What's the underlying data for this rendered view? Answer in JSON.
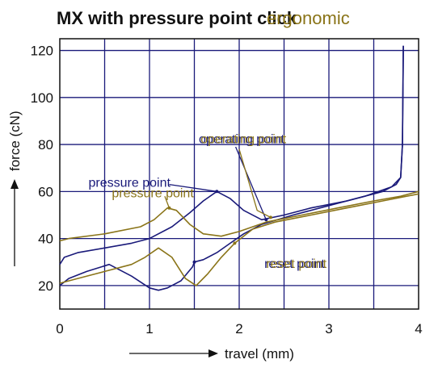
{
  "chart_data": {
    "type": "line",
    "title": "MX with pressure point click",
    "title_overlay": "ergonomic",
    "xlabel": "travel (mm)",
    "ylabel": "force (cN)",
    "xlim": [
      0,
      4
    ],
    "ylim": [
      10,
      125
    ],
    "x_ticks": [
      0,
      1,
      2,
      3,
      4
    ],
    "y_ticks": [
      20,
      40,
      60,
      80,
      100,
      120
    ],
    "grid": true,
    "colors": {
      "click": "#1a1a7a",
      "ergonomic": "#8a7418",
      "grid": "#1a1a7a"
    },
    "series": [
      {
        "name": "",
        "color": "#1a1a7a",
        "points": [
          [
            0,
            29
          ],
          [
            0.05,
            32
          ],
          [
            0.2,
            34
          ],
          [
            0.5,
            36
          ],
          [
            0.8,
            38
          ],
          [
            1.0,
            40
          ],
          [
            1.25,
            45
          ],
          [
            1.45,
            51
          ],
          [
            1.6,
            56
          ],
          [
            1.75,
            60
          ],
          [
            1.9,
            57
          ],
          [
            2.05,
            52
          ],
          [
            2.25,
            48
          ],
          [
            2.5,
            50
          ],
          [
            2.8,
            53
          ],
          [
            3.2,
            56
          ],
          [
            3.6,
            60
          ],
          [
            3.75,
            63
          ],
          [
            3.8,
            66
          ],
          [
            3.82,
            80
          ],
          [
            3.83,
            122
          ]
        ]
      },
      {
        "name": "",
        "color": "#1a1a7a",
        "points": [
          [
            3.83,
            122
          ],
          [
            3.82,
            80
          ],
          [
            3.8,
            66
          ],
          [
            3.7,
            62
          ],
          [
            3.4,
            58
          ],
          [
            3.0,
            54
          ],
          [
            2.6,
            50
          ],
          [
            2.25,
            46
          ],
          [
            2.05,
            42
          ],
          [
            1.9,
            38
          ],
          [
            1.75,
            34
          ],
          [
            1.6,
            31
          ],
          [
            1.5,
            30
          ],
          [
            1.48,
            28
          ],
          [
            1.35,
            22
          ],
          [
            1.2,
            19
          ],
          [
            1.1,
            18
          ],
          [
            1.0,
            19
          ],
          [
            0.8,
            24
          ],
          [
            0.55,
            29
          ],
          [
            0.3,
            26
          ],
          [
            0.1,
            23
          ],
          [
            0,
            20
          ]
        ]
      },
      {
        "name": "",
        "color": "#8a7418",
        "points": [
          [
            0,
            39
          ],
          [
            0.1,
            40
          ],
          [
            0.5,
            42
          ],
          [
            0.9,
            45
          ],
          [
            1.05,
            48
          ],
          [
            1.2,
            53
          ],
          [
            1.3,
            52
          ],
          [
            1.45,
            46
          ],
          [
            1.6,
            42
          ],
          [
            1.8,
            41
          ],
          [
            2.0,
            43
          ],
          [
            2.3,
            47
          ],
          [
            2.7,
            50
          ],
          [
            3.1,
            53
          ],
          [
            3.5,
            56
          ],
          [
            3.8,
            58
          ],
          [
            4.0,
            60
          ]
        ]
      },
      {
        "name": "",
        "color": "#8a7418",
        "points": [
          [
            4.0,
            59
          ],
          [
            3.6,
            56
          ],
          [
            3.2,
            53
          ],
          [
            2.8,
            50
          ],
          [
            2.4,
            47
          ],
          [
            2.15,
            44
          ],
          [
            1.95,
            38
          ],
          [
            1.8,
            32
          ],
          [
            1.65,
            25
          ],
          [
            1.52,
            20
          ],
          [
            1.4,
            23
          ],
          [
            1.25,
            32
          ],
          [
            1.1,
            36
          ],
          [
            0.95,
            32
          ],
          [
            0.8,
            29
          ],
          [
            0.5,
            26
          ],
          [
            0.2,
            23
          ],
          [
            0,
            21
          ]
        ]
      }
    ],
    "annotations": [
      {
        "text": "pressure point",
        "color": "#1a1a7a",
        "x": 0.32,
        "y": 62,
        "target": [
          1.75,
          60
        ],
        "via": [
          [
            1.22,
            63
          ],
          [
            1.75,
            60
          ]
        ]
      },
      {
        "text": "pressure point",
        "color": "#8a7418",
        "x": 0.58,
        "y": 57.5,
        "target": [
          1.22,
          53
        ],
        "via": [
          [
            1.17,
            58
          ],
          [
            1.22,
            53
          ]
        ]
      },
      {
        "text": "operating point",
        "color": "#1a1a7a",
        "x": 1.55,
        "y": 80.5,
        "target": [
          2.3,
          48
        ],
        "via": [
          [
            1.96,
            79
          ],
          [
            2.3,
            48
          ]
        ]
      },
      {
        "text": "operating point",
        "color": "#8a7418",
        "x": 1.57,
        "y": 80.5,
        "target": [
          2.35,
          49
        ],
        "via": [
          [
            2.0,
            78
          ],
          [
            2.2,
            52
          ],
          [
            2.35,
            49
          ]
        ]
      },
      {
        "text": "reset point",
        "color": "#1a1a7a",
        "x": 2.28,
        "y": 27.5,
        "target": [
          1.5,
          30
        ],
        "via": [
          [
            1.5,
            30
          ]
        ]
      },
      {
        "text": "reset point",
        "color": "#8a7418",
        "x": 2.3,
        "y": 27.5,
        "target": [
          1.95,
          38
        ],
        "via": [
          [
            1.95,
            38
          ]
        ]
      }
    ]
  }
}
